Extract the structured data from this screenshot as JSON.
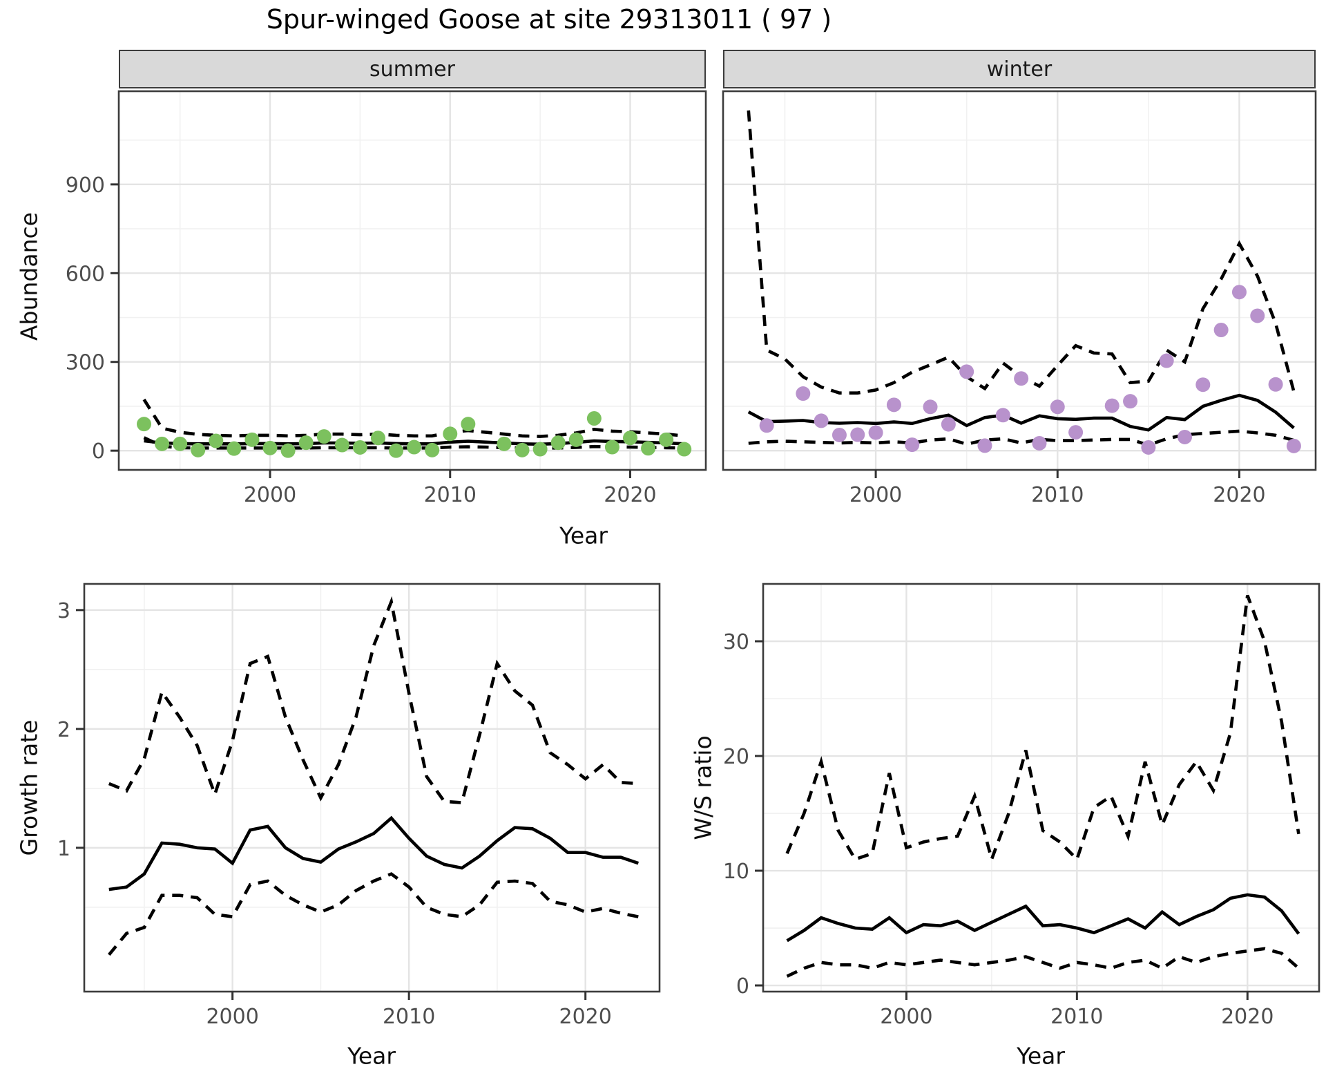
{
  "title": "Spur-winged Goose at site 29313011 ( 97 )",
  "colors": {
    "summer_points": "#7cc15e",
    "winter_points": "#b892cc",
    "line": "#000000",
    "strip_bg": "#d9d9d9",
    "grid_major": "#e4e4e4",
    "grid_minor": "#f1f1f1",
    "tick_label": "#4d4d4d",
    "panel_border": "#3c3c3c"
  },
  "chart_data": [
    {
      "type": "line+scatter",
      "title": "summer",
      "xlabel": "Year",
      "ylabel": "Abundance",
      "xlim": [
        1991.6,
        2024.2
      ],
      "ylim": [
        -65,
        1215
      ],
      "x_ticks": [
        2000,
        2010,
        2020
      ],
      "x_minor": [
        1995,
        2005,
        2015
      ],
      "y_ticks": [
        0,
        300,
        600,
        900
      ],
      "y_minor": [
        150,
        450,
        750,
        1050
      ],
      "grid": true,
      "legend": false,
      "x": [
        1993,
        1994,
        1995,
        1996,
        1997,
        1998,
        1999,
        2000,
        2001,
        2002,
        2003,
        2004,
        2005,
        2006,
        2007,
        2008,
        2009,
        2010,
        2011,
        2012,
        2013,
        2014,
        2015,
        2016,
        2017,
        2018,
        2019,
        2020,
        2021,
        2022,
        2023
      ],
      "series": [
        {
          "name": "observed",
          "style": "points",
          "color": "#7cc15e",
          "values": [
            90,
            23,
            23,
            2,
            33,
            7,
            37,
            9,
            0,
            27,
            48,
            19,
            11,
            43,
            0,
            12,
            2,
            57,
            90,
            null,
            23,
            2,
            5,
            27,
            37,
            109,
            12,
            43,
            8,
            37,
            5
          ]
        },
        {
          "name": "model fit",
          "style": "solid",
          "color": "#000000",
          "values": [
            33,
            26,
            24,
            23,
            23,
            23,
            24,
            24,
            23,
            24,
            26,
            26,
            25,
            26,
            24,
            23,
            23,
            29,
            32,
            29,
            26,
            23,
            22,
            24,
            28,
            33,
            31,
            30,
            28,
            26,
            23
          ]
        },
        {
          "name": "upper CI",
          "style": "dashed",
          "color": "#000000",
          "values": [
            173,
            76,
            62,
            55,
            52,
            50,
            52,
            52,
            50,
            52,
            56,
            56,
            54,
            56,
            52,
            50,
            50,
            62,
            68,
            62,
            56,
            50,
            48,
            52,
            60,
            72,
            66,
            64,
            60,
            56,
            50
          ]
        },
        {
          "name": "lower CI",
          "style": "dashed",
          "color": "#000000",
          "values": [
            44,
            15,
            10,
            9,
            9,
            9,
            9,
            9,
            9,
            9,
            10,
            10,
            10,
            10,
            9,
            9,
            9,
            12,
            13,
            12,
            10,
            9,
            9,
            9,
            11,
            14,
            13,
            12,
            11,
            10,
            9
          ]
        }
      ]
    },
    {
      "type": "line+scatter",
      "title": "winter",
      "xlabel": "Year",
      "ylabel": "Abundance",
      "xlim": [
        1991.6,
        2024.2
      ],
      "ylim": [
        -65,
        1215
      ],
      "x_ticks": [
        2000,
        2010,
        2020
      ],
      "x_minor": [
        1995,
        2005,
        2015
      ],
      "y_ticks": [
        0,
        300,
        600,
        900
      ],
      "y_minor": [
        150,
        450,
        750,
        1050
      ],
      "grid": true,
      "legend": false,
      "x": [
        1993,
        1994,
        1995,
        1996,
        1997,
        1998,
        1999,
        2000,
        2001,
        2002,
        2003,
        2004,
        2005,
        2006,
        2007,
        2008,
        2009,
        2010,
        2011,
        2012,
        2013,
        2014,
        2015,
        2016,
        2017,
        2018,
        2019,
        2020,
        2021,
        2022,
        2023
      ],
      "series": [
        {
          "name": "observed",
          "style": "points",
          "color": "#b892cc",
          "values": [
            null,
            85,
            null,
            193,
            101,
            53,
            54,
            61,
            155,
            20,
            148,
            89,
            267,
            17,
            120,
            244,
            25,
            148,
            62,
            null,
            152,
            167,
            11,
            304,
            46,
            223,
            408,
            536,
            456,
            224,
            16
          ]
        },
        {
          "name": "model fit",
          "style": "solid",
          "color": "#000000",
          "values": [
            131,
            98,
            100,
            102,
            95,
            93,
            95,
            92,
            97,
            92,
            108,
            120,
            85,
            112,
            120,
            93,
            118,
            108,
            106,
            110,
            110,
            82,
            70,
            112,
            105,
            150,
            170,
            187,
            170,
            130,
            77
          ]
        },
        {
          "name": "upper CI",
          "style": "dashed",
          "color": "#000000",
          "values": [
            1150,
            340,
            310,
            250,
            215,
            195,
            195,
            205,
            230,
            265,
            290,
            316,
            250,
            210,
            296,
            250,
            218,
            288,
            355,
            330,
            327,
            230,
            235,
            340,
            300,
            480,
            580,
            700,
            590,
            430,
            200
          ]
        },
        {
          "name": "lower CI",
          "style": "dashed",
          "color": "#000000",
          "values": [
            25,
            30,
            32,
            30,
            28,
            26,
            28,
            26,
            30,
            26,
            36,
            40,
            22,
            36,
            40,
            26,
            38,
            34,
            34,
            36,
            38,
            38,
            19,
            40,
            54,
            58,
            62,
            66,
            60,
            52,
            35
          ]
        }
      ]
    },
    {
      "type": "line",
      "title": "Growth rate",
      "xlabel": "Year",
      "ylabel": "Growth rate",
      "xlim": [
        1991.6,
        2024.2
      ],
      "ylim": [
        -0.21,
        3.22
      ],
      "x_ticks": [
        2000,
        2010,
        2020
      ],
      "x_minor": [
        1995,
        2005,
        2015
      ],
      "y_ticks": [
        1,
        2,
        3
      ],
      "y_minor": [
        0.5,
        1.5,
        2.5
      ],
      "grid": true,
      "legend": false,
      "x": [
        1993,
        1994,
        1995,
        1996,
        1997,
        1998,
        1999,
        2000,
        2001,
        2002,
        2003,
        2004,
        2005,
        2006,
        2007,
        2008,
        2009,
        2010,
        2011,
        2012,
        2013,
        2014,
        2015,
        2016,
        2017,
        2018,
        2019,
        2020,
        2021,
        2022,
        2023
      ],
      "series": [
        {
          "name": "growth rate",
          "style": "solid",
          "color": "#000000",
          "values": [
            0.65,
            0.67,
            0.78,
            1.04,
            1.03,
            1.0,
            0.99,
            0.87,
            1.15,
            1.18,
            1.0,
            0.91,
            0.88,
            0.99,
            1.05,
            1.12,
            1.25,
            1.08,
            0.93,
            0.86,
            0.83,
            0.93,
            1.06,
            1.17,
            1.16,
            1.08,
            0.96,
            0.96,
            0.92,
            0.92,
            0.87
          ]
        },
        {
          "name": "upper CI",
          "style": "dashed",
          "color": "#000000",
          "values": [
            1.54,
            1.48,
            1.75,
            2.31,
            2.1,
            1.86,
            1.45,
            1.9,
            2.55,
            2.61,
            2.1,
            1.74,
            1.42,
            1.7,
            2.1,
            2.7,
            3.07,
            2.3,
            1.6,
            1.39,
            1.38,
            1.95,
            2.55,
            2.32,
            2.2,
            1.8,
            1.7,
            1.58,
            1.7,
            1.55,
            1.54
          ]
        },
        {
          "name": "lower CI",
          "style": "dashed",
          "color": "#000000",
          "values": [
            0.1,
            0.28,
            0.33,
            0.6,
            0.6,
            0.58,
            0.44,
            0.42,
            0.69,
            0.72,
            0.6,
            0.52,
            0.46,
            0.52,
            0.64,
            0.72,
            0.78,
            0.67,
            0.5,
            0.44,
            0.42,
            0.52,
            0.71,
            0.72,
            0.7,
            0.55,
            0.52,
            0.46,
            0.49,
            0.45,
            0.42
          ]
        }
      ]
    },
    {
      "type": "line",
      "title": "W/S ratio",
      "xlabel": "Year",
      "ylabel": "W/S ratio",
      "xlim": [
        1991.6,
        2024.2
      ],
      "ylim": [
        -0.54,
        35.0
      ],
      "x_ticks": [
        2000,
        2010,
        2020
      ],
      "x_minor": [
        1995,
        2005,
        2015
      ],
      "y_ticks": [
        0,
        10,
        20,
        30
      ],
      "y_minor": [
        5,
        15,
        25,
        35
      ],
      "grid": true,
      "legend": false,
      "x": [
        1993,
        1994,
        1995,
        1996,
        1997,
        1998,
        1999,
        2000,
        2001,
        2002,
        2003,
        2004,
        2005,
        2006,
        2007,
        2008,
        2009,
        2010,
        2011,
        2012,
        2013,
        2014,
        2015,
        2016,
        2017,
        2018,
        2019,
        2020,
        2021,
        2022,
        2023
      ],
      "series": [
        {
          "name": "W/S ratio",
          "style": "solid",
          "color": "#000000",
          "values": [
            3.9,
            4.8,
            5.9,
            5.4,
            5.0,
            4.9,
            5.9,
            4.6,
            5.3,
            5.2,
            5.6,
            4.8,
            5.5,
            6.2,
            6.9,
            5.2,
            5.3,
            5.0,
            4.6,
            5.2,
            5.8,
            5.0,
            6.4,
            5.3,
            6.0,
            6.6,
            7.6,
            7.9,
            7.7,
            6.5,
            4.5
          ]
        },
        {
          "name": "upper CI",
          "style": "dashed",
          "color": "#000000",
          "values": [
            11.5,
            15,
            19.5,
            13.5,
            11,
            11.5,
            18.5,
            12,
            12.5,
            12.8,
            13,
            16.5,
            11,
            15,
            20.5,
            13.5,
            12.5,
            11,
            15.5,
            16.5,
            13,
            19.5,
            14,
            17.5,
            19.5,
            17,
            22,
            34,
            30,
            23,
            13.2
          ]
        },
        {
          "name": "lower CI",
          "style": "dashed",
          "color": "#000000",
          "values": [
            0.8,
            1.5,
            2,
            1.8,
            1.8,
            1.5,
            2,
            1.8,
            2,
            2.2,
            2,
            1.8,
            2,
            2.2,
            2.5,
            2,
            1.5,
            2,
            1.8,
            1.5,
            2,
            2.2,
            1.5,
            2.5,
            2,
            2.5,
            2.8,
            3,
            3.2,
            2.8,
            1.5
          ]
        }
      ]
    }
  ]
}
